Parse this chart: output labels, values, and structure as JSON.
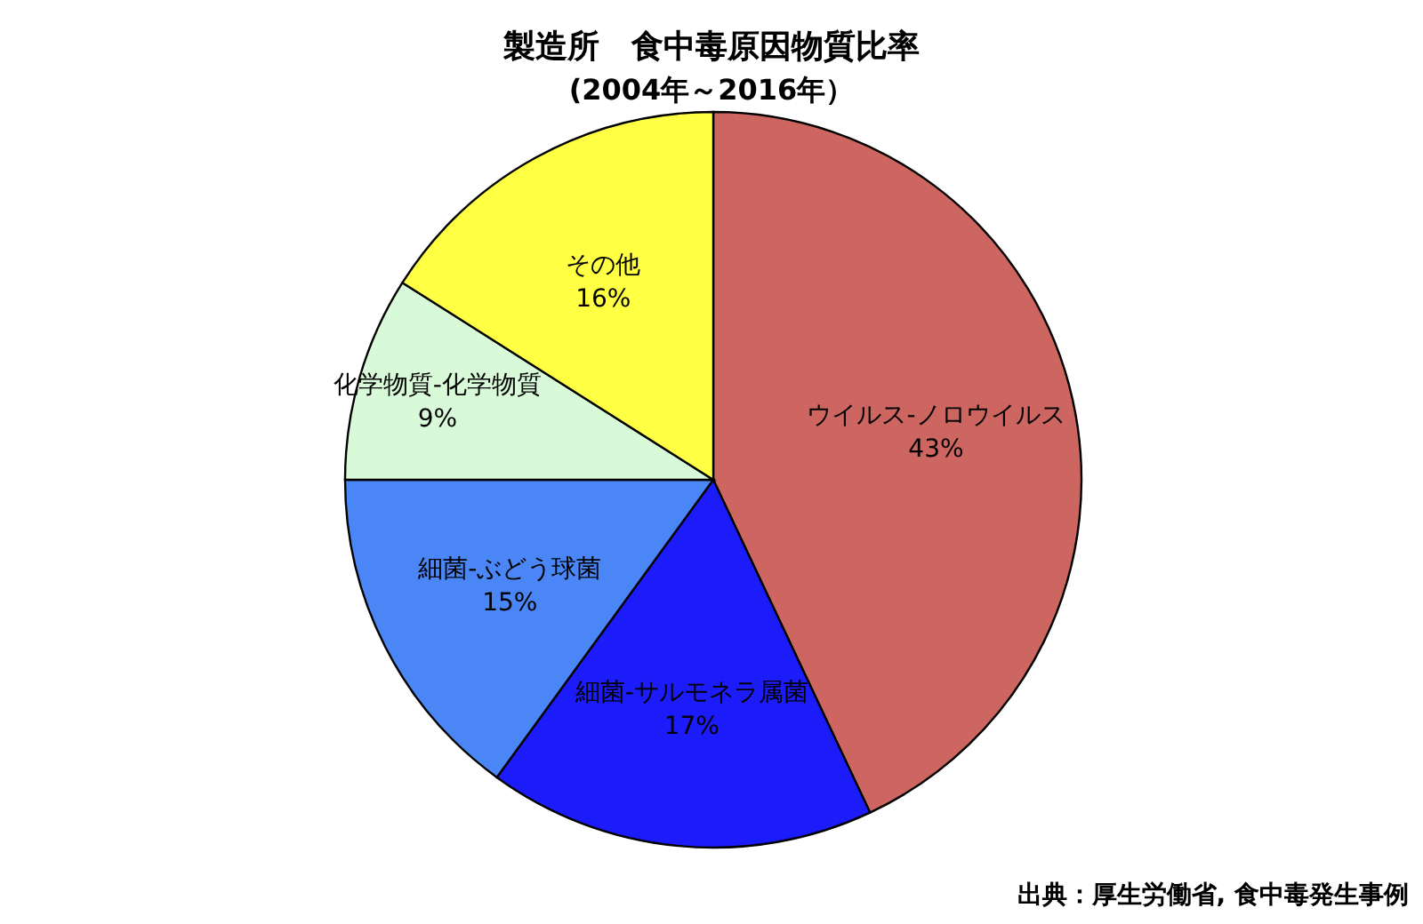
{
  "chart_data": {
    "type": "pie",
    "title": "製造所　食中毒原因物質比率",
    "subtitle": "(2004年～2016年）",
    "categories": [
      "ウイルス-ノロウイルス",
      "細菌-サルモネラ属菌",
      "細菌-ぶどう球菌",
      "化学物質-化学物質",
      "その他"
    ],
    "values": [
      43,
      17,
      15,
      9,
      16
    ],
    "value_labels": [
      "43%",
      "17%",
      "15%",
      "9%",
      "16%"
    ],
    "colors": [
      "#cd6660",
      "#1c1cfa",
      "#4a86f5",
      "#d8fad8",
      "#ffff44"
    ],
    "annotations": [
      "出典：厚生労働省, 食中毒発生事例"
    ]
  }
}
